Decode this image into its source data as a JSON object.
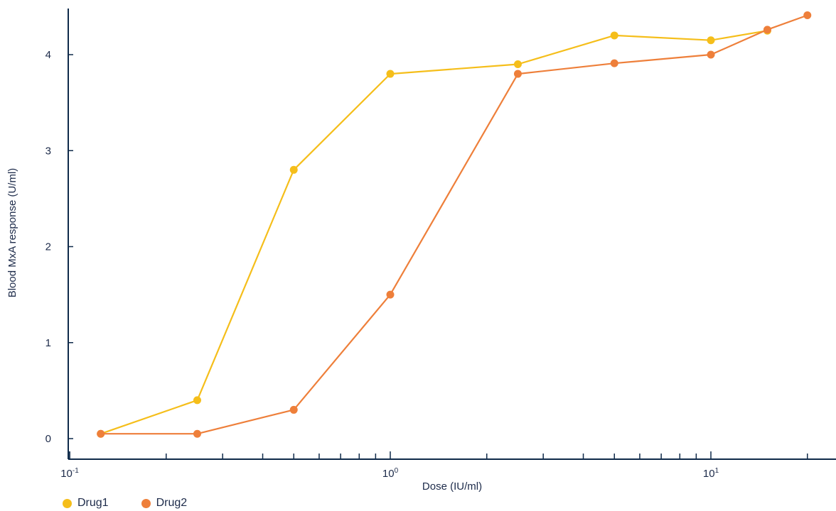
{
  "chart_data": {
    "type": "line",
    "title": "",
    "xlabel": "Dose (IU/ml)",
    "ylabel": "Blood MxA response (U/ml)",
    "x_scale": "log",
    "xlim": [
      0.1,
      32
    ],
    "ylim": [
      -0.2,
      4.7
    ],
    "x_tick_labels": [
      {
        "base": "10",
        "exp": "-1",
        "value": 0.1
      },
      {
        "base": "10",
        "exp": "0",
        "value": 1
      },
      {
        "base": "10",
        "exp": "1",
        "value": 10
      }
    ],
    "y_ticks": [
      0,
      1,
      2,
      3,
      4
    ],
    "y_tick_labels": [
      "0",
      "1",
      "2",
      "3",
      "4"
    ],
    "grid": false,
    "legend_position": "bottom-left",
    "series": [
      {
        "name": "Drug1",
        "color": "#f5be1a",
        "x": [
          0.125,
          0.25,
          0.5,
          1,
          2.5,
          5,
          10,
          15
        ],
        "y": [
          0.05,
          0.4,
          2.8,
          3.8,
          3.9,
          4.2,
          4.15,
          4.25
        ]
      },
      {
        "name": "Drug2",
        "color": "#ee7f3a",
        "x": [
          0.125,
          0.25,
          0.5,
          1,
          2.5,
          5,
          10,
          15,
          20
        ],
        "y": [
          0.05,
          0.05,
          0.3,
          1.5,
          3.8,
          3.91,
          4.0,
          4.26,
          4.41
        ]
      }
    ]
  }
}
